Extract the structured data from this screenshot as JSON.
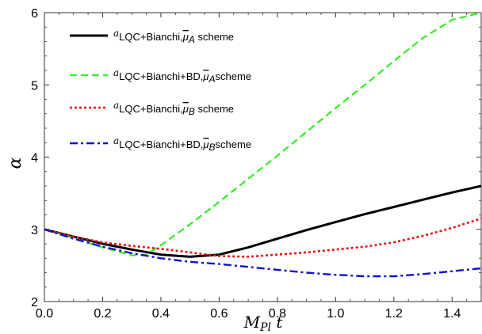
{
  "chart_data": {
    "type": "line",
    "title": "",
    "xlabel": "M",
    "xlabel_sub": "Pl",
    "xlabel_suffix": " t",
    "ylabel": "α",
    "xlim": [
      0,
      1.5
    ],
    "ylim": [
      2,
      6
    ],
    "x_ticks": [
      "0.0",
      "0.2",
      "0.4",
      "0.6",
      "0.8",
      "1.0",
      "1.2",
      "1.4"
    ],
    "y_ticks": [
      "2",
      "3",
      "4",
      "5",
      "6"
    ],
    "grid": false,
    "legend_position": "top-left",
    "series": [
      {
        "name": "α LQC+Bianchi, μ̄A scheme",
        "legend_sub": "LQC+Bianchi,",
        "legend_mu": "A",
        "legend_suffix": " scheme",
        "color": "#000000",
        "style": "solid",
        "x": [
          0,
          0.1,
          0.2,
          0.3,
          0.4,
          0.5,
          0.6,
          0.7,
          0.8,
          0.9,
          1.0,
          1.1,
          1.2,
          1.3,
          1.4,
          1.5
        ],
        "y": [
          3.0,
          2.9,
          2.8,
          2.72,
          2.65,
          2.62,
          2.65,
          2.75,
          2.87,
          2.99,
          3.1,
          3.21,
          3.31,
          3.41,
          3.51,
          3.6
        ]
      },
      {
        "name": "α LQC+Bianchi+BD, μ̄A scheme",
        "legend_sub": "LQC+Bianchi+BD,",
        "legend_mu": "A",
        "legend_suffix": "scheme",
        "color": "#33ee22",
        "style": "dashed",
        "x": [
          0,
          0.1,
          0.2,
          0.3,
          0.35,
          0.4,
          0.5,
          0.6,
          0.7,
          0.8,
          0.9,
          1.0,
          1.1,
          1.2,
          1.3,
          1.4,
          1.5
        ],
        "y": [
          3.0,
          2.88,
          2.75,
          2.64,
          2.65,
          2.78,
          3.07,
          3.38,
          3.7,
          4.02,
          4.35,
          4.68,
          5.0,
          5.33,
          5.65,
          5.9,
          6.0
        ]
      },
      {
        "name": "α LQC+Bianchi, μ̄B scheme",
        "legend_sub": "LQC+Bianchi,",
        "legend_mu": "B",
        "legend_suffix": " scheme",
        "color": "#ee1111",
        "style": "dotted",
        "x": [
          0,
          0.1,
          0.2,
          0.3,
          0.4,
          0.5,
          0.6,
          0.7,
          0.8,
          0.9,
          1.0,
          1.1,
          1.2,
          1.3,
          1.4,
          1.5
        ],
        "y": [
          3.0,
          2.9,
          2.82,
          2.77,
          2.73,
          2.68,
          2.63,
          2.62,
          2.65,
          2.68,
          2.72,
          2.76,
          2.82,
          2.91,
          3.02,
          3.15
        ]
      },
      {
        "name": "α LQC+Bianchi+BD, μ̄B scheme",
        "legend_sub": "LQC+Bianchi+BD,",
        "legend_mu": "B",
        "legend_suffix": "scheme",
        "color": "#1111cc",
        "style": "dashdot",
        "x": [
          0,
          0.1,
          0.2,
          0.3,
          0.4,
          0.5,
          0.6,
          0.7,
          0.8,
          0.9,
          1.0,
          1.1,
          1.2,
          1.3,
          1.4,
          1.5
        ],
        "y": [
          3.0,
          2.87,
          2.76,
          2.67,
          2.6,
          2.55,
          2.52,
          2.48,
          2.44,
          2.4,
          2.37,
          2.35,
          2.35,
          2.38,
          2.42,
          2.46
        ]
      }
    ]
  }
}
